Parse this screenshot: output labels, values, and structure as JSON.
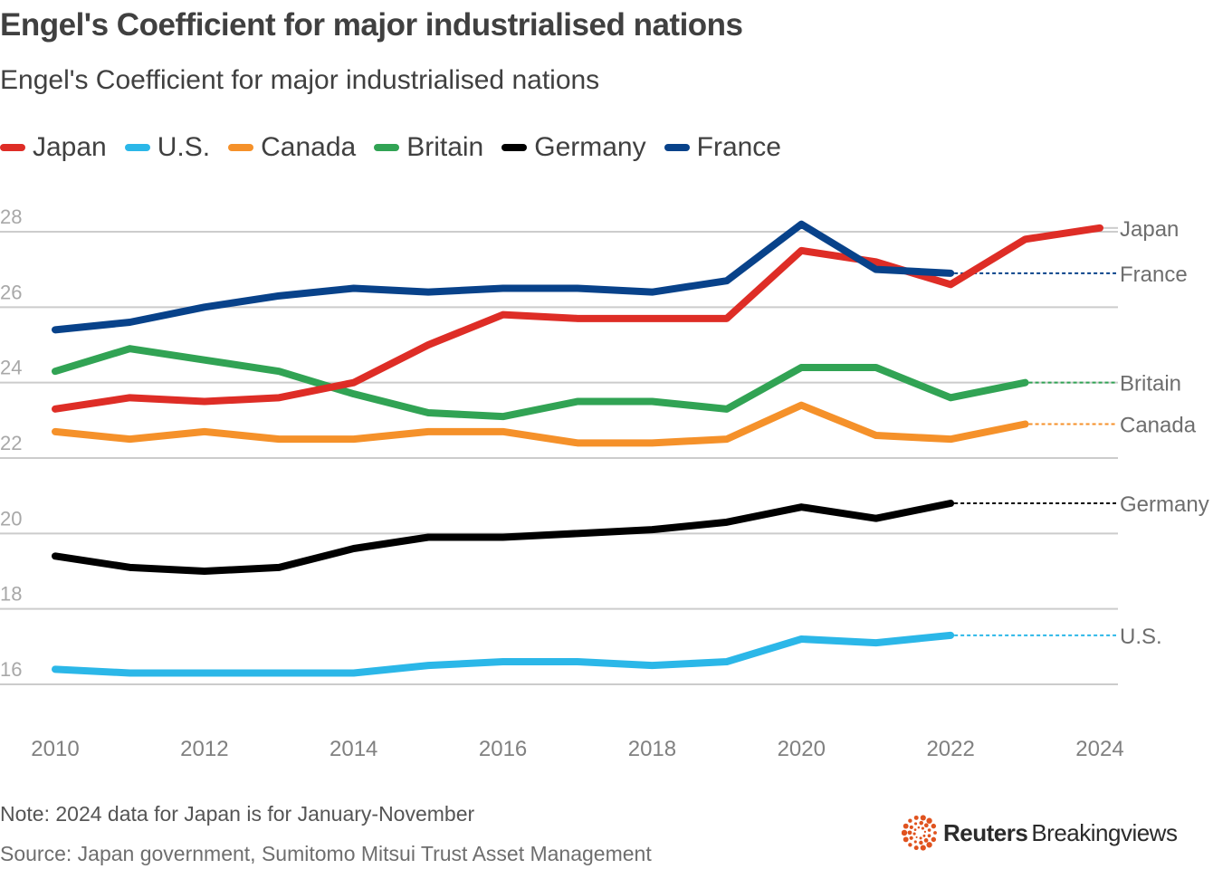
{
  "header": {
    "title": "Engel's Coefficient for major industrialised nations",
    "subtitle": "Engel's Coefficient for major industrialised nations"
  },
  "footer": {
    "note": "Note: 2024 data for Japan is for January-November",
    "source": "Source: Japan government, Sumitomo Mitsui Trust Asset Management",
    "logo_bold": "Reuters",
    "logo_light": "Breakingviews",
    "logo_icon": "reuters-dots-icon",
    "logo_color": "#e0531f"
  },
  "chart_data": {
    "type": "line",
    "title": "Engel's Coefficient for major industrialised nations",
    "subtitle": "Engel's Coefficient for major industrialised nations",
    "xlabel": "",
    "ylabel": "",
    "x": [
      2010,
      2011,
      2012,
      2013,
      2014,
      2015,
      2016,
      2017,
      2018,
      2019,
      2020,
      2021,
      2022,
      2023,
      2024
    ],
    "xticks": [
      2010,
      2012,
      2014,
      2016,
      2018,
      2020,
      2022,
      2024
    ],
    "xlim": [
      2010,
      2024
    ],
    "yticks": [
      16,
      18,
      20,
      22,
      24,
      26,
      28
    ],
    "ylim": [
      16,
      28
    ],
    "grid": true,
    "legend_position": "top-left",
    "series": [
      {
        "name": "Japan",
        "color": "#de2d26",
        "label": "Japan",
        "label_value": 28.1,
        "values": [
          23.3,
          23.6,
          23.5,
          23.6,
          24.0,
          25.0,
          25.8,
          25.7,
          25.7,
          25.7,
          27.5,
          27.2,
          26.6,
          27.8,
          28.1
        ]
      },
      {
        "name": "U.S.",
        "color": "#2bb7e8",
        "label": "U.S.",
        "label_value": 17.3,
        "values": [
          16.4,
          16.3,
          16.3,
          16.3,
          16.3,
          16.5,
          16.6,
          16.6,
          16.5,
          16.6,
          17.2,
          17.1,
          17.3,
          null,
          null
        ]
      },
      {
        "name": "Canada",
        "color": "#f5912a",
        "label": "Canada",
        "label_value": 22.9,
        "values": [
          22.7,
          22.5,
          22.7,
          22.5,
          22.5,
          22.7,
          22.7,
          22.4,
          22.4,
          22.5,
          23.4,
          22.6,
          22.5,
          22.9,
          null
        ]
      },
      {
        "name": "Britain",
        "color": "#31a354",
        "label": "Britain",
        "label_value": 24.0,
        "values": [
          24.3,
          24.9,
          24.6,
          24.3,
          23.7,
          23.2,
          23.1,
          23.5,
          23.5,
          23.3,
          24.4,
          24.4,
          23.6,
          24.0,
          null
        ]
      },
      {
        "name": "Germany",
        "color": "#000000",
        "label": "Germany",
        "label_value": 20.8,
        "values": [
          19.4,
          19.1,
          19.0,
          19.1,
          19.6,
          19.9,
          19.9,
          20.0,
          20.1,
          20.3,
          20.7,
          20.4,
          20.8,
          null,
          null
        ]
      },
      {
        "name": "France",
        "color": "#08428a",
        "label": "France",
        "label_value": 26.9,
        "values": [
          25.4,
          25.6,
          26.0,
          26.3,
          26.5,
          26.4,
          26.5,
          26.5,
          26.4,
          26.7,
          28.2,
          27.0,
          26.9,
          null,
          null
        ]
      }
    ],
    "annotations": [
      "Note: 2024 data for Japan is for January-November"
    ]
  }
}
